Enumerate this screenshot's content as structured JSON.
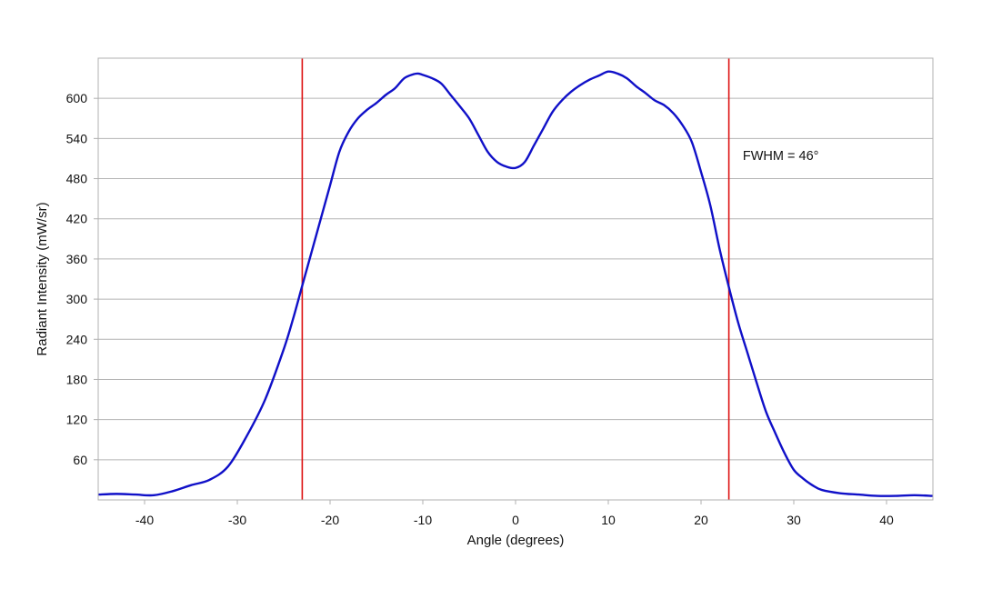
{
  "chart_data": {
    "type": "line",
    "title": "",
    "xlabel": "Angle (degrees)",
    "ylabel": "Radiant Intensity (mW/sr)",
    "xlim": [
      -45,
      45
    ],
    "ylim": [
      0,
      660
    ],
    "x_ticks": [
      -40,
      -30,
      -20,
      -10,
      0,
      10,
      20,
      30,
      40
    ],
    "x_tick_labels": [
      "-40",
      "-30",
      "-20",
      "-10",
      "0",
      "10",
      "20",
      "30",
      "40"
    ],
    "y_ticks": [
      60,
      120,
      180,
      240,
      300,
      360,
      420,
      480,
      540,
      600
    ],
    "y_tick_labels": [
      "60",
      "120",
      "180",
      "240",
      "300",
      "360",
      "420",
      "480",
      "540",
      "600"
    ],
    "grid": "horizontal",
    "series": [
      {
        "color": "#1010c8",
        "x": [
          -45,
          -43,
          -41,
          -39,
          -37,
          -35,
          -33,
          -31,
          -29,
          -27,
          -25,
          -24,
          -23,
          -22,
          -21,
          -20,
          -19,
          -18,
          -17,
          -16,
          -15,
          -14,
          -13,
          -12,
          -11,
          -10.5,
          -10,
          -9,
          -8,
          -7,
          -6,
          -5,
          -4,
          -3,
          -2,
          -1,
          0,
          1,
          2,
          3,
          4,
          5,
          6,
          7,
          8,
          9,
          10,
          11,
          12,
          13,
          14,
          15,
          16,
          17,
          18,
          19,
          20,
          21,
          22,
          23,
          24,
          25,
          26,
          27,
          28,
          29,
          30,
          31,
          32,
          33,
          35,
          37,
          39,
          41,
          43,
          45
        ],
        "y": [
          8,
          9,
          8,
          7,
          13,
          22,
          30,
          50,
          95,
          150,
          225,
          270,
          320,
          370,
          420,
          470,
          520,
          550,
          570,
          583,
          593,
          605,
          615,
          630,
          636,
          637,
          635,
          630,
          622,
          605,
          588,
          570,
          545,
          520,
          505,
          498,
          496,
          505,
          530,
          555,
          580,
          597,
          610,
          620,
          628,
          634,
          640,
          637,
          630,
          618,
          608,
          597,
          590,
          578,
          560,
          535,
          490,
          440,
          375,
          318,
          265,
          220,
          175,
          132,
          100,
          70,
          45,
          32,
          22,
          15,
          10,
          8,
          6,
          6,
          7,
          6
        ]
      }
    ],
    "vertical_markers": [
      {
        "x": -23,
        "color": "#dd1111"
      },
      {
        "x": 23,
        "color": "#dd1111"
      }
    ],
    "annotations": [
      {
        "text": "FWHM = 46°",
        "x": 24.5,
        "y": 508
      }
    ]
  }
}
